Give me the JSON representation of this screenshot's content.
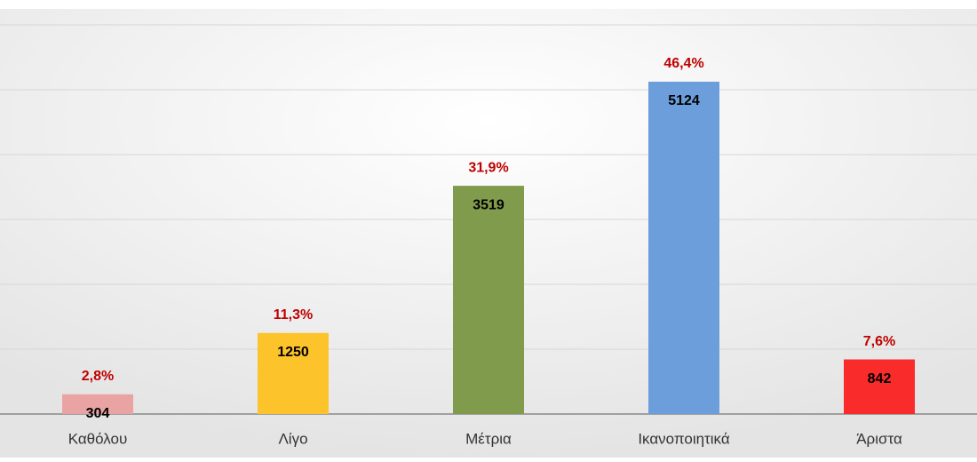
{
  "chart_data": {
    "type": "bar",
    "categories": [
      "Καθόλου",
      "Λίγο",
      "Μέτρια",
      "Ικανοποιητικά",
      "Άριστα"
    ],
    "values": [
      304,
      1250,
      3519,
      5124,
      842
    ],
    "percent_labels": [
      "2,8%",
      "11,3%",
      "31,9%",
      "46,4%",
      "7,6%"
    ],
    "colors": [
      "#e9a3a3",
      "#fcc32b",
      "#809b4c",
      "#6b9edb",
      "#fa2b2b"
    ],
    "ylim": [
      0,
      6000
    ],
    "yticks": [
      0,
      1000,
      2000,
      3000,
      4000,
      5000,
      6000
    ],
    "grid": true
  }
}
